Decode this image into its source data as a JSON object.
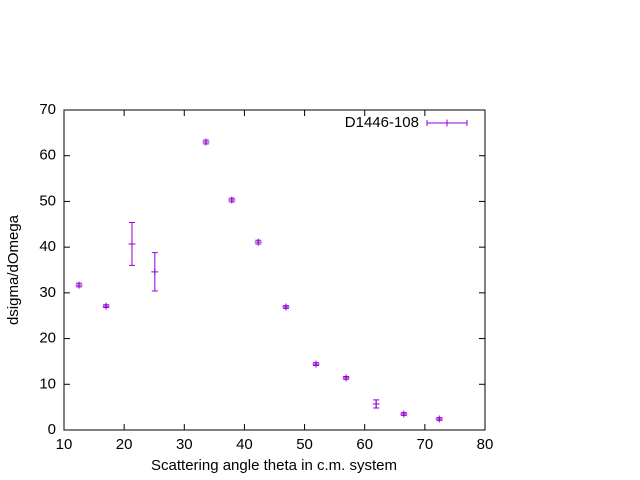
{
  "chart_data": {
    "type": "scatter",
    "xlabel": "Scattering angle theta in c.m. system",
    "ylabel": "dsigma/dOmega",
    "xlim": [
      10,
      80
    ],
    "xticks": [
      10,
      20,
      30,
      40,
      50,
      60,
      70,
      80
    ],
    "ylim": [
      0,
      70
    ],
    "yticks": [
      0,
      10,
      20,
      30,
      40,
      50,
      60,
      70
    ],
    "grid": false,
    "legend": "top right",
    "series": [
      {
        "name": "D1446-108",
        "color": "#9400d3",
        "x": [
          12.5,
          17.0,
          21.3,
          25.1,
          33.6,
          37.9,
          42.3,
          46.9,
          51.9,
          56.9,
          61.9,
          66.5,
          72.4
        ],
        "values": [
          31.7,
          27.1,
          40.7,
          34.6,
          63.0,
          50.3,
          41.1,
          26.9,
          14.4,
          11.4,
          5.7,
          3.5,
          2.4
        ],
        "errors": [
          0.4,
          0.3,
          4.7,
          4.2,
          0.4,
          0.4,
          0.4,
          0.3,
          0.3,
          0.3,
          0.9,
          0.3,
          0.3
        ]
      }
    ]
  }
}
